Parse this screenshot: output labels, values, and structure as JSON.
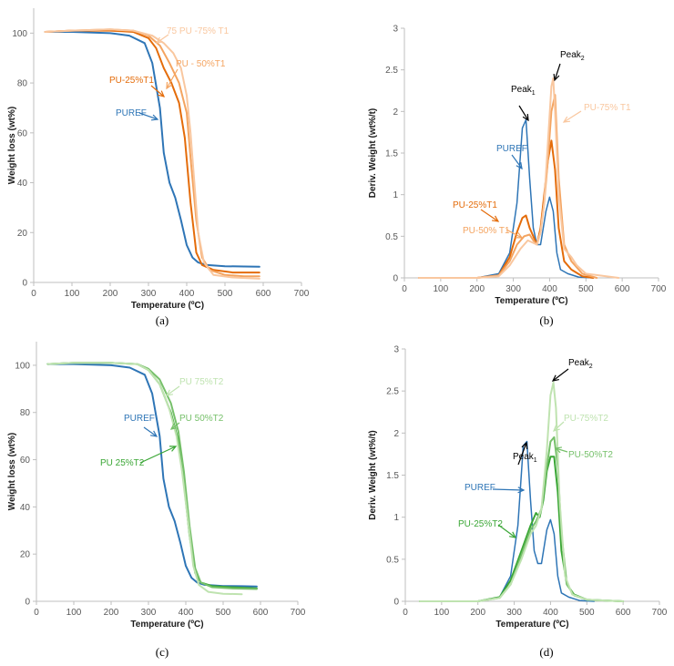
{
  "chart_data": [
    {
      "type": "line",
      "caption": "(a)",
      "xlabel": "Temperature (ºC)",
      "ylabel": "Weight loss (wt%)",
      "xlim": [
        0,
        700
      ],
      "ylim": [
        0,
        110
      ],
      "x_ticks": [
        0,
        100,
        200,
        300,
        400,
        500,
        600,
        700
      ],
      "y_ticks": [
        0,
        20,
        40,
        60,
        80,
        100
      ],
      "series": [
        {
          "name": "PUREF",
          "color": "#2e75b6",
          "width": 2,
          "x": [
            30,
            100,
            200,
            250,
            290,
            310,
            330,
            340,
            355,
            370,
            385,
            400,
            415,
            430,
            450,
            500,
            550,
            590
          ],
          "y": [
            100.5,
            100.5,
            100,
            99,
            96,
            88,
            70,
            52,
            40,
            34,
            25,
            15,
            10,
            8,
            7,
            6.5,
            6.4,
            6.3
          ]
        },
        {
          "name": "PU-25%T1",
          "color": "#e46c0a",
          "width": 2,
          "x": [
            30,
            100,
            200,
            260,
            300,
            320,
            340,
            360,
            380,
            395,
            410,
            425,
            440,
            470,
            520,
            590
          ],
          "y": [
            100.5,
            101,
            101,
            100.5,
            98,
            94,
            86,
            80,
            72,
            58,
            32,
            12,
            7,
            5,
            4,
            4
          ]
        },
        {
          "name": "PU - 50%T1",
          "color": "#f4a460",
          "width": 2,
          "x": [
            30,
            100,
            200,
            260,
            300,
            330,
            355,
            380,
            400,
            410,
            425,
            440,
            460,
            500,
            550,
            590
          ],
          "y": [
            100.5,
            101,
            101.5,
            101,
            99,
            95,
            88,
            80,
            68,
            50,
            25,
            10,
            5,
            3,
            2.5,
            2.5
          ]
        },
        {
          "name": "75 PU -75% T1",
          "color": "#f9c79f",
          "width": 2,
          "x": [
            30,
            100,
            200,
            260,
            310,
            340,
            365,
            385,
            400,
            410,
            420,
            430,
            445,
            470,
            520,
            590
          ],
          "y": [
            100.5,
            101,
            101.5,
            101,
            99,
            96,
            92,
            86,
            75,
            60,
            40,
            20,
            8,
            3,
            2,
            1.5
          ]
        }
      ],
      "annotations": [
        {
          "text": "75 PU -75% T1",
          "color": "#f9c79f"
        },
        {
          "text": "PU - 50%T1",
          "color": "#f4a460"
        },
        {
          "text": "PU-25%T1",
          "color": "#e46c0a"
        },
        {
          "text": "PUREF",
          "color": "#2e75b6"
        }
      ]
    },
    {
      "type": "line",
      "caption": "(b)",
      "xlabel": "Temperature (ºC)",
      "ylabel": "Deriv. Weight  (wt%/t)",
      "xlim": [
        0,
        700
      ],
      "ylim": [
        0,
        3
      ],
      "x_ticks": [
        0,
        100,
        200,
        300,
        400,
        500,
        600,
        700
      ],
      "y_ticks": [
        0,
        0.5,
        1,
        1.5,
        2,
        2.5,
        3
      ],
      "y_tick_labels": [
        "0",
        "0.5",
        "1",
        "1.5",
        "2",
        "2.5",
        "3"
      ],
      "series": [
        {
          "name": "PUREF",
          "color": "#2e75b6",
          "width": 1.5,
          "x": [
            40,
            200,
            260,
            290,
            310,
            325,
            335,
            345,
            355,
            365,
            375,
            390,
            400,
            410,
            420,
            430,
            450,
            480,
            520
          ],
          "y": [
            0,
            0,
            0.05,
            0.3,
            0.9,
            1.8,
            1.9,
            1.2,
            0.6,
            0.4,
            0.4,
            0.8,
            0.97,
            0.8,
            0.3,
            0.1,
            0.05,
            0.01,
            0
          ]
        },
        {
          "name": "PU-25%T1",
          "color": "#e46c0a",
          "width": 2,
          "x": [
            40,
            200,
            260,
            290,
            310,
            325,
            335,
            345,
            355,
            365,
            375,
            385,
            395,
            405,
            415,
            425,
            440,
            460,
            490,
            520
          ],
          "y": [
            0,
            0,
            0.03,
            0.25,
            0.55,
            0.72,
            0.75,
            0.6,
            0.5,
            0.4,
            0.6,
            1.0,
            1.4,
            1.65,
            1.3,
            0.6,
            0.2,
            0.1,
            0.02,
            0
          ]
        },
        {
          "name": "PU-50% T1",
          "color": "#f4a460",
          "width": 2,
          "x": [
            40,
            200,
            260,
            290,
            310,
            330,
            345,
            355,
            365,
            375,
            385,
            395,
            405,
            415,
            425,
            440,
            460,
            490,
            530
          ],
          "y": [
            0,
            0,
            0.03,
            0.2,
            0.4,
            0.5,
            0.52,
            0.45,
            0.4,
            0.55,
            0.9,
            1.4,
            2.0,
            2.2,
            1.2,
            0.4,
            0.2,
            0.05,
            0
          ]
        },
        {
          "name": "PU-75% T1",
          "color": "#f9c79f",
          "width": 2,
          "x": [
            40,
            200,
            260,
            290,
            320,
            340,
            355,
            365,
            375,
            385,
            395,
            405,
            410,
            415,
            425,
            440,
            460,
            475,
            500,
            590
          ],
          "y": [
            0,
            0,
            0.02,
            0.15,
            0.35,
            0.45,
            0.42,
            0.4,
            0.55,
            0.9,
            1.6,
            2.3,
            2.4,
            2.0,
            1.0,
            0.35,
            0.25,
            0.15,
            0.05,
            0
          ]
        }
      ],
      "annotations": [
        {
          "text": "Peak",
          "sub": "1",
          "color": "#000000"
        },
        {
          "text": "Peak",
          "sub": "2",
          "color": "#000000"
        },
        {
          "text": "PU-75% T1",
          "color": "#f9c79f"
        },
        {
          "text": "PUREF",
          "color": "#2e75b6"
        },
        {
          "text": "PU-25%T1",
          "color": "#e46c0a"
        },
        {
          "text": "PU-50% T1",
          "color": "#f4a460"
        }
      ]
    },
    {
      "type": "line",
      "caption": "(c)",
      "xlabel": "Temperature (ºC)",
      "ylabel": "Weight loss (wt%)",
      "xlim": [
        0,
        700
      ],
      "ylim": [
        0,
        110
      ],
      "x_ticks": [
        0,
        100,
        200,
        300,
        400,
        500,
        600,
        700
      ],
      "y_ticks": [
        0,
        20,
        40,
        60,
        80,
        100
      ],
      "series": [
        {
          "name": "PUREF",
          "color": "#2e75b6",
          "width": 2,
          "x": [
            30,
            100,
            200,
            250,
            290,
            310,
            330,
            340,
            355,
            370,
            385,
            400,
            415,
            430,
            450,
            500,
            550,
            590
          ],
          "y": [
            100.5,
            100.5,
            100,
            99,
            96,
            88,
            70,
            52,
            40,
            34,
            25,
            15,
            10,
            8,
            7,
            6.5,
            6.4,
            6.3
          ]
        },
        {
          "name": "PU 25%T2",
          "color": "#3aa635",
          "width": 2,
          "x": [
            30,
            100,
            200,
            270,
            300,
            330,
            360,
            380,
            395,
            410,
            425,
            440,
            470,
            520,
            590
          ],
          "y": [
            100.5,
            101,
            101,
            100.5,
            98,
            92,
            80,
            68,
            50,
            28,
            12,
            8,
            6.5,
            6,
            5.5
          ]
        },
        {
          "name": "PU 50%T2",
          "color": "#76c06a",
          "width": 2,
          "x": [
            30,
            100,
            200,
            270,
            300,
            330,
            360,
            380,
            395,
            410,
            425,
            440,
            470,
            520,
            590
          ],
          "y": [
            100.5,
            101,
            101,
            100.5,
            98.5,
            94,
            84,
            72,
            55,
            32,
            14,
            8,
            6,
            5.5,
            5.2
          ]
        },
        {
          "name": "PU 75%T2",
          "color": "#bfe3b0",
          "width": 2,
          "x": [
            30,
            100,
            200,
            270,
            300,
            330,
            355,
            375,
            390,
            405,
            420,
            435,
            460,
            500,
            550
          ],
          "y": [
            100.5,
            101,
            101,
            100.5,
            98,
            92,
            82,
            70,
            55,
            35,
            15,
            7,
            4,
            3.2,
            3
          ]
        }
      ],
      "annotations": [
        {
          "text": "PU 75%T2",
          "color": "#bfe3b0"
        },
        {
          "text": "PU 50%T2",
          "color": "#76c06a"
        },
        {
          "text": "PUREF",
          "color": "#2e75b6"
        },
        {
          "text": "PU 25%T2",
          "color": "#3aa635"
        }
      ]
    },
    {
      "type": "line",
      "caption": "(d)",
      "xlabel": "Temperature (ºC)",
      "ylabel": "Deriv. Weight  (wt%/t)",
      "xlim": [
        0,
        700
      ],
      "ylim": [
        0,
        3
      ],
      "x_ticks": [
        0,
        100,
        200,
        300,
        400,
        500,
        600,
        700
      ],
      "y_ticks": [
        0,
        0.5,
        1,
        1.5,
        2,
        2.5,
        3
      ],
      "y_tick_labels": [
        "0",
        "0.5",
        "1",
        "1.5",
        "2",
        "2.5",
        "3"
      ],
      "series": [
        {
          "name": "PUREF",
          "color": "#2e75b6",
          "width": 1.5,
          "x": [
            40,
            200,
            260,
            290,
            310,
            325,
            335,
            345,
            355,
            365,
            375,
            390,
            400,
            410,
            420,
            430,
            450,
            480,
            520
          ],
          "y": [
            0,
            0,
            0.05,
            0.3,
            0.9,
            1.85,
            1.9,
            1.2,
            0.6,
            0.45,
            0.45,
            0.85,
            0.97,
            0.8,
            0.3,
            0.1,
            0.05,
            0.01,
            0
          ]
        },
        {
          "name": "PU-25%T2",
          "color": "#3aa635",
          "width": 2,
          "x": [
            40,
            200,
            260,
            290,
            320,
            345,
            360,
            370,
            380,
            390,
            400,
            410,
            420,
            430,
            445,
            465,
            500,
            600
          ],
          "y": [
            0,
            0,
            0.05,
            0.25,
            0.6,
            0.9,
            1.05,
            1.0,
            1.2,
            1.55,
            1.72,
            1.72,
            1.3,
            0.6,
            0.2,
            0.08,
            0.02,
            0
          ]
        },
        {
          "name": "PU-50%T2",
          "color": "#76c06a",
          "width": 2,
          "x": [
            40,
            200,
            260,
            290,
            320,
            345,
            360,
            375,
            390,
            400,
            410,
            420,
            430,
            445,
            465,
            500,
            600
          ],
          "y": [
            0,
            0,
            0.04,
            0.2,
            0.55,
            0.85,
            0.95,
            1.1,
            1.6,
            1.9,
            1.95,
            1.6,
            0.8,
            0.2,
            0.07,
            0.02,
            0
          ]
        },
        {
          "name": "PU-75%T2",
          "color": "#bfe3b0",
          "width": 2,
          "x": [
            40,
            200,
            260,
            290,
            320,
            345,
            360,
            375,
            390,
            400,
            408,
            415,
            425,
            440,
            460,
            500,
            600
          ],
          "y": [
            0,
            0,
            0.04,
            0.2,
            0.5,
            0.8,
            0.9,
            1.1,
            1.8,
            2.45,
            2.6,
            2.3,
            1.2,
            0.3,
            0.08,
            0.02,
            0
          ]
        }
      ],
      "annotations": [
        {
          "text": "Peak",
          "sub": "1",
          "color": "#000000"
        },
        {
          "text": "Peak",
          "sub": "2",
          "color": "#000000"
        },
        {
          "text": "PU-75%T2",
          "color": "#bfe3b0"
        },
        {
          "text": "PU-50%T2",
          "color": "#76c06a"
        },
        {
          "text": "PUREF",
          "color": "#2e75b6"
        },
        {
          "text": "PU-25%T2",
          "color": "#3aa635"
        }
      ]
    }
  ]
}
